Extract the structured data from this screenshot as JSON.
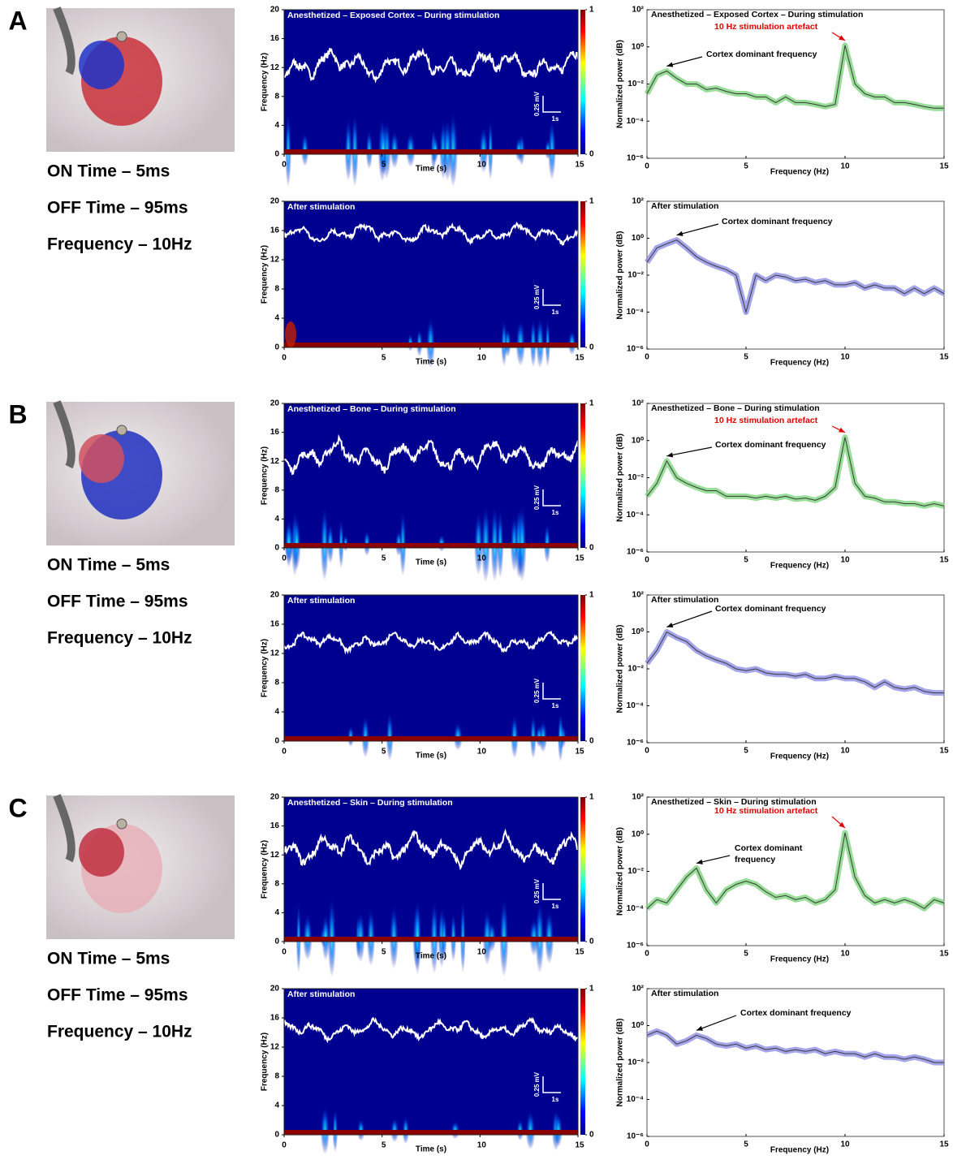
{
  "panels": [
    {
      "letter": "A",
      "settings": [
        "ON Time – 5ms",
        "OFF Time – 95ms",
        "Frequency – 10Hz"
      ],
      "spectrograms": [
        {
          "title": "Anesthetized – Exposed Cortex – During stimulation",
          "ylabel": "Frequency (Hz)",
          "xlabel": "Time (s)",
          "xlim": [
            0,
            15
          ],
          "xticks": [
            0,
            5,
            10,
            15
          ],
          "ylim": [
            0,
            20
          ],
          "yticks": [
            0,
            4,
            8,
            12,
            16,
            20
          ],
          "colorbar_ticks": [
            0,
            1
          ],
          "scale_bar": [
            "0.25 mV",
            "1s"
          ]
        },
        {
          "title": "After stimulation",
          "ylabel": "Frequency (Hz)",
          "xlabel": "Time (s)",
          "xlim": [
            0,
            15
          ],
          "xticks": [
            0,
            5,
            10,
            15
          ],
          "ylim": [
            0,
            20
          ],
          "yticks": [
            0,
            4,
            8,
            12,
            16,
            20
          ],
          "colorbar_ticks": [
            0,
            1
          ],
          "scale_bar": [
            "0.25 mV",
            "1s"
          ]
        }
      ],
      "psd": [
        {
          "type": "line",
          "title": "Anesthetized – Exposed Cortex – During stimulation",
          "annotations": [
            {
              "text": [
                "10 Hz stimulation artefact"
              ],
              "color": "#e00000"
            },
            {
              "text": [
                "Cortex dominant frequency"
              ],
              "color": "#000000"
            }
          ],
          "ylabel": "Normalized power (dB)",
          "xlabel": "Frequency (Hz)",
          "xlim": [
            0,
            15
          ],
          "xticks": [
            0,
            5,
            10,
            15
          ],
          "log_y": true,
          "ylim": [
            1e-06,
            100
          ],
          "yticks": [
            {
              "value": 100,
              "label": "10²"
            },
            {
              "value": 1,
              "label": "10⁰"
            },
            {
              "value": 0.01,
              "label": "10⁻²"
            },
            {
              "value": 0.0001,
              "label": "10⁻⁴"
            },
            {
              "value": 1e-06,
              "label": "10⁻⁶"
            }
          ],
          "x": [
            0,
            0.5,
            1,
            1.5,
            2,
            2.5,
            3,
            3.5,
            4,
            4.5,
            5,
            5.5,
            6,
            6.5,
            7,
            7.5,
            8,
            8.5,
            9,
            9.5,
            10,
            10.5,
            11,
            11.5,
            12,
            12.5,
            13,
            13.5,
            14,
            14.5,
            15
          ],
          "series": [
            {
              "color": "#7ed47e",
              "line_color": "#3a3a3a",
              "values": [
                0.003,
                0.03,
                0.05,
                0.02,
                0.01,
                0.01,
                0.005,
                0.006,
                0.004,
                0.003,
                0.003,
                0.002,
                0.002,
                0.001,
                0.002,
                0.001,
                0.001,
                0.0008,
                0.0006,
                0.0008,
                1.2,
                0.01,
                0.003,
                0.002,
                0.002,
                0.001,
                0.001,
                0.0008,
                0.0006,
                0.0005,
                0.0005
              ]
            }
          ]
        },
        {
          "type": "line",
          "title": "After stimulation",
          "annotations": [
            {
              "text": [
                "Cortex dominant frequency"
              ],
              "color": "#000000"
            }
          ],
          "ylabel": "Normalized power (dB)",
          "xlabel": "Frequency (Hz)",
          "xlim": [
            0,
            15
          ],
          "xticks": [
            0,
            5,
            10,
            15
          ],
          "log_y": true,
          "ylim": [
            1e-06,
            100
          ],
          "yticks": [
            {
              "value": 100,
              "label": "10²"
            },
            {
              "value": 1,
              "label": "10⁰"
            },
            {
              "value": 0.01,
              "label": "10⁻²"
            },
            {
              "value": 0.0001,
              "label": "10⁻⁴"
            },
            {
              "value": 1e-06,
              "label": "10⁻⁶"
            }
          ],
          "x": [
            0,
            0.5,
            1,
            1.5,
            2,
            2.5,
            3,
            3.5,
            4,
            4.5,
            5,
            5.5,
            6,
            6.5,
            7,
            7.5,
            8,
            8.5,
            9,
            9.5,
            10,
            10.5,
            11,
            11.5,
            12,
            12.5,
            13,
            13.5,
            14,
            14.5,
            15
          ],
          "series": [
            {
              "color": "#8f8fe6",
              "line_color": "#3a3a3a",
              "values": [
                0.05,
                0.3,
                0.5,
                0.8,
                0.3,
                0.1,
                0.05,
                0.03,
                0.02,
                0.01,
                0.0001,
                0.01,
                0.005,
                0.01,
                0.008,
                0.005,
                0.006,
                0.004,
                0.005,
                0.003,
                0.003,
                0.004,
                0.002,
                0.003,
                0.002,
                0.002,
                0.001,
                0.002,
                0.001,
                0.002,
                0.001
              ]
            }
          ]
        }
      ]
    },
    {
      "letter": "B",
      "settings": [
        "ON Time – 5ms",
        "OFF Time – 95ms",
        "Frequency – 10Hz"
      ],
      "spectrograms": [
        {
          "title": "Anesthetized – Bone – During stimulation",
          "ylabel": "Frequency (Hz)",
          "xlabel": "Time (s)",
          "xlim": [
            0,
            15
          ],
          "xticks": [
            0,
            5,
            10,
            15
          ],
          "ylim": [
            0,
            20
          ],
          "yticks": [
            0,
            4,
            8,
            12,
            16,
            20
          ],
          "colorbar_ticks": [
            0,
            1
          ],
          "scale_bar": [
            "0.25 mV",
            "1s"
          ]
        },
        {
          "title": "After stimulation",
          "ylabel": "Frequency (Hz)",
          "xlabel": "Time (s)",
          "xlim": [
            0,
            15
          ],
          "xticks": [
            0,
            5,
            10,
            15
          ],
          "ylim": [
            0,
            20
          ],
          "yticks": [
            0,
            4,
            8,
            12,
            16,
            20
          ],
          "colorbar_ticks": [
            0,
            1
          ],
          "scale_bar": [
            "0.25 mV",
            "1s"
          ]
        }
      ],
      "psd": [
        {
          "type": "line",
          "title": "Anesthetized – Bone – During stimulation",
          "annotations": [
            {
              "text": [
                "10 Hz stimulation artefact"
              ],
              "color": "#e00000"
            },
            {
              "text": [
                "Cortex dominant frequency"
              ],
              "color": "#000000"
            }
          ],
          "ylabel": "Normalized power (dB)",
          "xlabel": "Frequency (Hz)",
          "xlim": [
            0,
            15
          ],
          "xticks": [
            0,
            5,
            10,
            15
          ],
          "log_y": true,
          "ylim": [
            1e-06,
            100
          ],
          "yticks": [
            {
              "value": 100,
              "label": "10²"
            },
            {
              "value": 1,
              "label": "10⁰"
            },
            {
              "value": 0.01,
              "label": "10⁻²"
            },
            {
              "value": 0.0001,
              "label": "10⁻⁴"
            },
            {
              "value": 1e-06,
              "label": "10⁻⁶"
            }
          ],
          "x": [
            0,
            0.5,
            1,
            1.5,
            2,
            2.5,
            3,
            3.5,
            4,
            4.5,
            5,
            5.5,
            6,
            6.5,
            7,
            7.5,
            8,
            8.5,
            9,
            9.5,
            10,
            10.5,
            11,
            11.5,
            12,
            12.5,
            13,
            13.5,
            14,
            14.5,
            15
          ],
          "series": [
            {
              "color": "#7ed47e",
              "line_color": "#3a3a3a",
              "values": [
                0.001,
                0.005,
                0.08,
                0.01,
                0.005,
                0.003,
                0.002,
                0.002,
                0.001,
                0.001,
                0.001,
                0.0008,
                0.001,
                0.0008,
                0.001,
                0.0007,
                0.0008,
                0.0006,
                0.001,
                0.003,
                1.5,
                0.005,
                0.001,
                0.0008,
                0.0005,
                0.0005,
                0.0004,
                0.0004,
                0.0003,
                0.0004,
                0.0003
              ]
            }
          ]
        },
        {
          "type": "line",
          "title": "After stimulation",
          "annotations": [
            {
              "text": [
                "Cortex dominant frequency"
              ],
              "color": "#000000"
            }
          ],
          "ylabel": "Normalized power (dB)",
          "xlabel": "Frequency (Hz)",
          "xlim": [
            0,
            15
          ],
          "xticks": [
            0,
            5,
            10,
            15
          ],
          "log_y": true,
          "ylim": [
            1e-06,
            100
          ],
          "yticks": [
            {
              "value": 100,
              "label": "10²"
            },
            {
              "value": 1,
              "label": "10⁰"
            },
            {
              "value": 0.01,
              "label": "10⁻²"
            },
            {
              "value": 0.0001,
              "label": "10⁻⁴"
            },
            {
              "value": 1e-06,
              "label": "10⁻⁶"
            }
          ],
          "x": [
            0,
            0.5,
            1,
            1.5,
            2,
            2.5,
            3,
            3.5,
            4,
            4.5,
            5,
            5.5,
            6,
            6.5,
            7,
            7.5,
            8,
            8.5,
            9,
            9.5,
            10,
            10.5,
            11,
            11.5,
            12,
            12.5,
            13,
            13.5,
            14,
            14.5,
            15
          ],
          "series": [
            {
              "color": "#8f8fe6",
              "line_color": "#3a3a3a",
              "values": [
                0.02,
                0.1,
                1,
                0.5,
                0.3,
                0.1,
                0.05,
                0.03,
                0.02,
                0.01,
                0.008,
                0.01,
                0.006,
                0.005,
                0.005,
                0.004,
                0.005,
                0.003,
                0.003,
                0.004,
                0.003,
                0.003,
                0.002,
                0.001,
                0.002,
                0.001,
                0.0008,
                0.001,
                0.0006,
                0.0005,
                0.0005
              ]
            }
          ]
        }
      ]
    },
    {
      "letter": "C",
      "settings": [
        "ON Time – 5ms",
        "OFF Time – 95ms",
        "Frequency – 10Hz"
      ],
      "spectrograms": [
        {
          "title": "Anesthetized – Skin – During stimulation",
          "ylabel": "Frequency (Hz)",
          "xlabel": "Time (s)",
          "xlim": [
            0,
            15
          ],
          "xticks": [
            0,
            5,
            10,
            15
          ],
          "ylim": [
            0,
            20
          ],
          "yticks": [
            0,
            4,
            8,
            12,
            16,
            20
          ],
          "colorbar_ticks": [
            0,
            1
          ],
          "scale_bar": [
            "0.25 mV",
            "1s"
          ]
        },
        {
          "title": "After stimulation",
          "ylabel": "Frequency (Hz)",
          "xlabel": "Time (s)",
          "xlim": [
            0,
            15
          ],
          "xticks": [
            0,
            5,
            10,
            15
          ],
          "ylim": [
            0,
            20
          ],
          "yticks": [
            0,
            4,
            8,
            12,
            16,
            20
          ],
          "colorbar_ticks": [
            0,
            1
          ],
          "scale_bar": [
            "0.25 mV",
            "1s"
          ]
        }
      ],
      "psd": [
        {
          "type": "line",
          "title": "Anesthetized – Skin – During stimulation",
          "annotations": [
            {
              "text": [
                "10 Hz stimulation artefact"
              ],
              "color": "#e00000"
            },
            {
              "text": [
                "Cortex dominant",
                "frequency"
              ],
              "color": "#000000"
            }
          ],
          "ylabel": "Normalized power (dB)",
          "xlabel": "Frequency (Hz)",
          "xlim": [
            0,
            15
          ],
          "xticks": [
            0,
            5,
            10,
            15
          ],
          "log_y": true,
          "ylim": [
            1e-06,
            100
          ],
          "yticks": [
            {
              "value": 100,
              "label": "10²"
            },
            {
              "value": 1,
              "label": "10⁰"
            },
            {
              "value": 0.01,
              "label": "10⁻²"
            },
            {
              "value": 0.0001,
              "label": "10⁻⁴"
            },
            {
              "value": 1e-06,
              "label": "10⁻⁶"
            }
          ],
          "x": [
            0,
            0.5,
            1,
            1.5,
            2,
            2.5,
            3,
            3.5,
            4,
            4.5,
            5,
            5.5,
            6,
            6.5,
            7,
            7.5,
            8,
            8.5,
            9,
            9.5,
            10,
            10.5,
            11,
            11.5,
            12,
            12.5,
            13,
            13.5,
            14,
            14.5,
            15
          ],
          "series": [
            {
              "color": "#7ed47e",
              "line_color": "#3a3a3a",
              "values": [
                0.0001,
                0.0003,
                0.0002,
                0.001,
                0.005,
                0.015,
                0.001,
                0.0002,
                0.001,
                0.002,
                0.003,
                0.002,
                0.0008,
                0.0004,
                0.0005,
                0.0003,
                0.0004,
                0.0002,
                0.0003,
                0.001,
                1.2,
                0.005,
                0.0005,
                0.0002,
                0.0003,
                0.0002,
                0.0003,
                0.0002,
                0.0001,
                0.0003,
                0.0002
              ]
            }
          ]
        },
        {
          "type": "line",
          "title": "After stimulation",
          "annotations": [
            {
              "text": [
                "Cortex dominant frequency"
              ],
              "color": "#000000"
            }
          ],
          "ylabel": "Normalized power (dB)",
          "xlabel": "Frequency (Hz)",
          "xlim": [
            0,
            15
          ],
          "xticks": [
            0,
            5,
            10,
            15
          ],
          "log_y": true,
          "ylim": [
            1e-06,
            100
          ],
          "yticks": [
            {
              "value": 100,
              "label": "10²"
            },
            {
              "value": 1,
              "label": "10⁰"
            },
            {
              "value": 0.01,
              "label": "10⁻²"
            },
            {
              "value": 0.0001,
              "label": "10⁻⁴"
            },
            {
              "value": 1e-06,
              "label": "10⁻⁶"
            }
          ],
          "x": [
            0,
            0.5,
            1,
            1.5,
            2,
            2.5,
            3,
            3.5,
            4,
            4.5,
            5,
            5.5,
            6,
            6.5,
            7,
            7.5,
            8,
            8.5,
            9,
            9.5,
            10,
            10.5,
            11,
            11.5,
            12,
            12.5,
            13,
            13.5,
            14,
            14.5,
            15
          ],
          "series": [
            {
              "color": "#8f8fe6",
              "line_color": "#3a3a3a",
              "values": [
                0.3,
                0.5,
                0.3,
                0.1,
                0.15,
                0.3,
                0.2,
                0.1,
                0.08,
                0.1,
                0.06,
                0.08,
                0.05,
                0.06,
                0.04,
                0.05,
                0.04,
                0.05,
                0.03,
                0.04,
                0.03,
                0.03,
                0.02,
                0.03,
                0.02,
                0.02,
                0.015,
                0.02,
                0.015,
                0.01,
                0.01
              ]
            }
          ]
        }
      ]
    }
  ]
}
